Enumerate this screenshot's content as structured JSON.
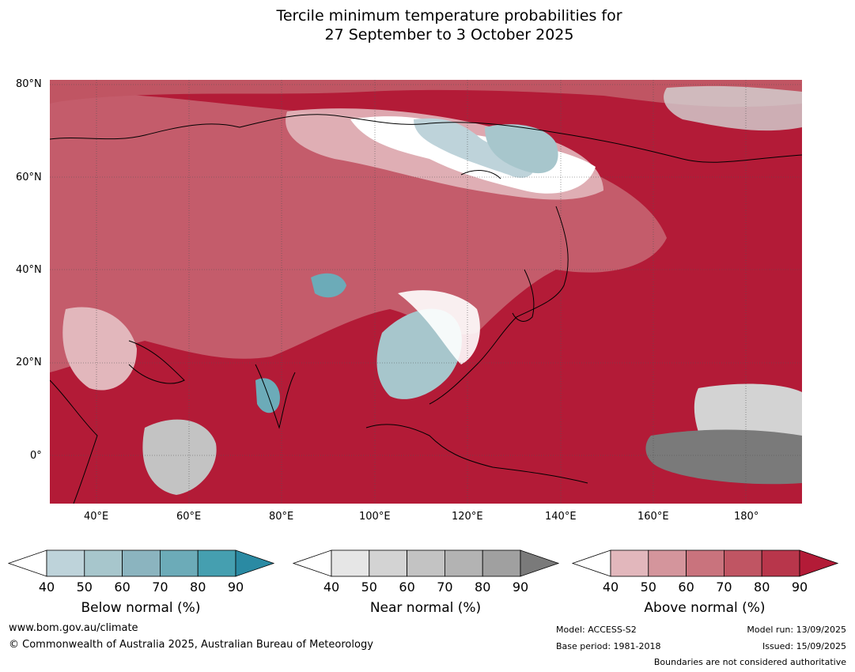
{
  "title_line1": "Tercile minimum temperature probabilities for",
  "title_line2": "27 September to 3 October 2025",
  "map": {
    "lat_labels": [
      "80°N",
      "60°N",
      "40°N",
      "20°N",
      "0°"
    ],
    "lon_labels": [
      "40°E",
      "60°E",
      "80°E",
      "100°E",
      "120°E",
      "140°E",
      "160°E",
      "180°"
    ],
    "ocean_color": "#b31b37"
  },
  "colorbars": {
    "ticks": [
      "40",
      "50",
      "60",
      "70",
      "80",
      "90"
    ],
    "below": {
      "label": "Below normal (%)",
      "colors": [
        "#ffffff",
        "#bed3da",
        "#a7c6cc",
        "#8bb4bf",
        "#6cabb8",
        "#459fb0",
        "#2a8aa3"
      ]
    },
    "near": {
      "label": "Near normal (%)",
      "colors": [
        "#ffffff",
        "#e6e6e6",
        "#d3d3d3",
        "#c3c3c3",
        "#b3b3b3",
        "#a0a0a0",
        "#7a7a7a"
      ]
    },
    "above": {
      "label": "Above normal (%)",
      "colors": [
        "#ffffff",
        "#e2b7bc",
        "#d4959c",
        "#c9737d",
        "#c05563",
        "#b8364b",
        "#b31b37"
      ]
    }
  },
  "footer": {
    "url": "www.bom.gov.au/climate",
    "copyright": "© Commonwealth of Australia 2025, Australian Bureau of Meteorology",
    "model": "Model: ACCESS-S2",
    "base_period": "Base period: 1981-2018",
    "model_run": "Model run: 13/09/2025",
    "issued": "Issued: 15/09/2025",
    "disclaimer": "Boundaries are not considered authoritative"
  }
}
